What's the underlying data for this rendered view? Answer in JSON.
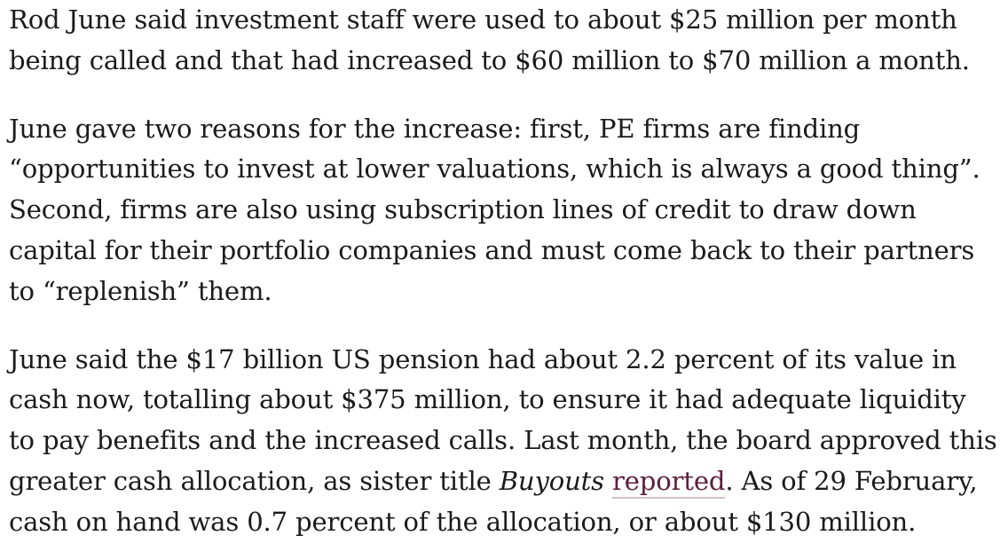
{
  "paragraphs": [
    {
      "lines": [
        "Rod June said investment staff were used to about $25 million per month",
        "being called and that had increased to $60 million to $70 million a month."
      ]
    },
    {
      "lines": [
        "June gave two reasons for the increase: first, PE firms are finding",
        "“opportunities to invest at lower valuations, which is always a good thing”.",
        "Second, firms are also using subscription lines of credit to draw down",
        "capital for their portfolio companies and must come back to their partners",
        "to “replenish” them."
      ]
    },
    {
      "lines": [
        "June said the $17 billion US pension had about 2.2 percent of its value in",
        "cash now, totalling about $375 million, to ensure it had adequate liquidity",
        "to pay benefits and the increased calls. Last month, the board approved this"
      ],
      "line4": {
        "before": "greater cash allocation, as sister title ",
        "italic": "Buyouts",
        "space": " ",
        "link": "reported",
        "after": ". As of 29 February,"
      },
      "line5": "cash on hand was 0.7 percent of the allocation, or about $130 million."
    }
  ],
  "colors": {
    "text": "#1b1b1b",
    "link": "#5a1f3e",
    "link_underline": "#cfc2c8"
  }
}
